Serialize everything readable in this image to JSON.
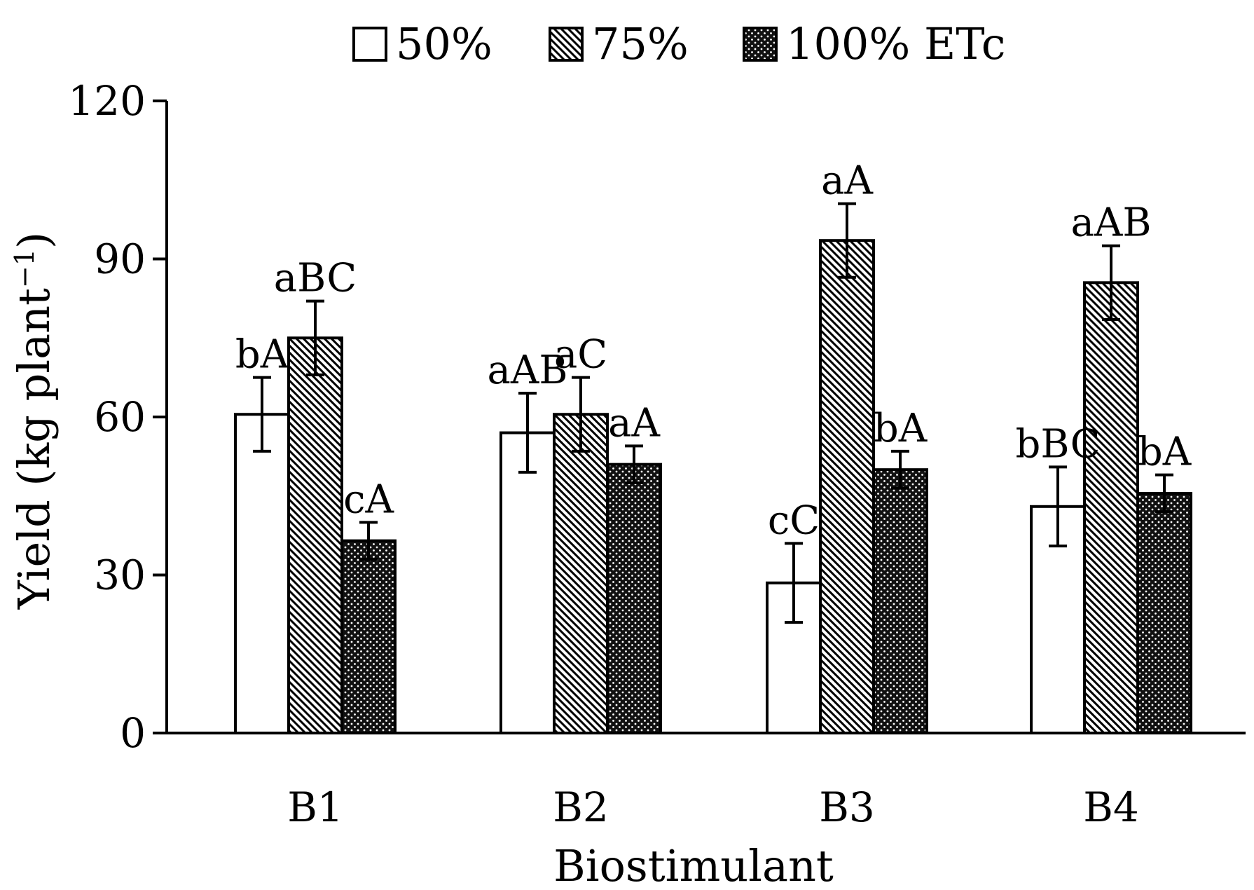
{
  "chart_data": {
    "type": "bar",
    "title": "",
    "xlabel": "Biostimulant",
    "ylabel": "Yield (kg plant",
    "ylabel_superscript": "−1",
    "ylabel_close": ")",
    "ylim": [
      0,
      120
    ],
    "yticks": [
      0,
      30,
      60,
      90,
      120
    ],
    "grid": false,
    "legend_position": "top",
    "categories": [
      "B1",
      "B2",
      "B3",
      "B4"
    ],
    "series": [
      {
        "name": "50%",
        "pattern": "open",
        "values": [
          60.5,
          57,
          28.5,
          43
        ],
        "errors": [
          7,
          7.5,
          7.5,
          7.5
        ],
        "letters": [
          "bA",
          "aAB",
          "cC",
          "bBC"
        ]
      },
      {
        "name": "75%",
        "pattern": "diagonal-hatch",
        "values": [
          75,
          60.5,
          93.5,
          85.5
        ],
        "errors": [
          7,
          7,
          7,
          7
        ],
        "letters": [
          "aBC",
          "aC",
          "aA",
          "aAB"
        ]
      },
      {
        "name": "100% ETc",
        "pattern": "dotted-dark",
        "values": [
          36.5,
          51,
          50,
          45.5
        ],
        "errors": [
          3.5,
          3.5,
          3.5,
          3.5
        ],
        "letters": [
          "cA",
          "aA",
          "bA",
          "bA"
        ]
      }
    ],
    "colors": {
      "axis": "#000000",
      "bar_stroke": "#000000",
      "open_fill": "#ffffff",
      "dark_fill": "#111111"
    }
  }
}
